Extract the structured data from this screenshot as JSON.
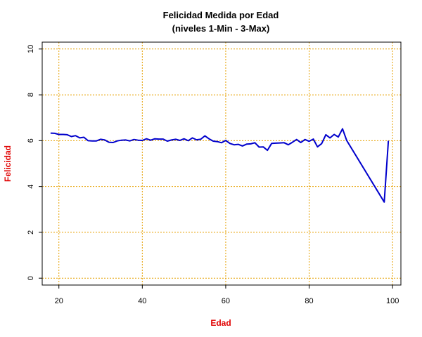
{
  "chart_data": {
    "type": "line",
    "title": "Felicidad Medida por Edad",
    "subtitle": "(niveles 1-Min - 3-Max)",
    "xlabel": "Edad",
    "ylabel": "Felicidad",
    "xlim": [
      16,
      102
    ],
    "ylim": [
      -0.3,
      10.3
    ],
    "xticks": [
      20,
      40,
      60,
      80,
      100
    ],
    "yticks": [
      0,
      2,
      4,
      6,
      8,
      10
    ],
    "grid": true,
    "legend": "none",
    "colors": {
      "line": "#0000cc",
      "grid": "#e6a000",
      "axis_label": "#e00000"
    },
    "series": [
      {
        "x": [
          18,
          19,
          20,
          21,
          22,
          23,
          24,
          25,
          26,
          27,
          28,
          29,
          30,
          31,
          32,
          33,
          34,
          35,
          36,
          37,
          38,
          39,
          40,
          41,
          42,
          43,
          44,
          45,
          46,
          47,
          48,
          49,
          50,
          51,
          52,
          53,
          54,
          55,
          56,
          57,
          58,
          59,
          60,
          61,
          62,
          63,
          64,
          65,
          66,
          67,
          68,
          69,
          70,
          71,
          72,
          73,
          74,
          75,
          76,
          77,
          78,
          79,
          80,
          81,
          82,
          83,
          84,
          85,
          86,
          87,
          88,
          89,
          98,
          99
        ],
        "y": [
          6.33,
          6.32,
          6.27,
          6.27,
          6.26,
          6.18,
          6.22,
          6.12,
          6.15,
          6.0,
          5.99,
          5.99,
          6.06,
          6.03,
          5.93,
          5.92,
          5.99,
          6.02,
          6.03,
          5.99,
          6.05,
          6.02,
          6.01,
          6.08,
          6.02,
          6.08,
          6.07,
          6.07,
          5.98,
          6.03,
          6.06,
          6.01,
          6.08,
          6.0,
          6.12,
          6.04,
          6.06,
          6.21,
          6.08,
          5.98,
          5.96,
          5.91,
          6.01,
          5.88,
          5.82,
          5.84,
          5.77,
          5.85,
          5.86,
          5.91,
          5.72,
          5.73,
          5.58,
          5.88,
          5.89,
          5.9,
          5.91,
          5.82,
          5.93,
          6.05,
          5.92,
          6.05,
          5.97,
          6.07,
          5.73,
          5.87,
          6.26,
          6.12,
          6.27,
          6.16,
          6.52,
          6.01,
          3.32,
          6.0
        ]
      }
    ]
  }
}
